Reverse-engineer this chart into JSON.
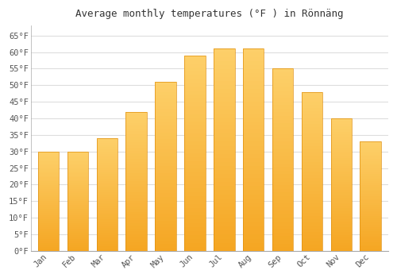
{
  "title": "Average monthly temperatures (°F ) in Rönnäng",
  "months": [
    "Jan",
    "Feb",
    "Mar",
    "Apr",
    "May",
    "Jun",
    "Jul",
    "Aug",
    "Sep",
    "Oct",
    "Nov",
    "Dec"
  ],
  "values": [
    30,
    30,
    34,
    42,
    51,
    59,
    61,
    61,
    55,
    48,
    40,
    33
  ],
  "bar_color_bottom": "#F5A623",
  "bar_color_top": "#FDD06A",
  "bar_edge_color": "#E09010",
  "background_color": "#FFFFFF",
  "plot_bg_color": "#FFFFFF",
  "grid_color": "#DDDDDD",
  "yticks": [
    0,
    5,
    10,
    15,
    20,
    25,
    30,
    35,
    40,
    45,
    50,
    55,
    60,
    65
  ],
  "ylim": [
    0,
    68
  ],
  "title_fontsize": 9,
  "tick_fontsize": 7.5
}
